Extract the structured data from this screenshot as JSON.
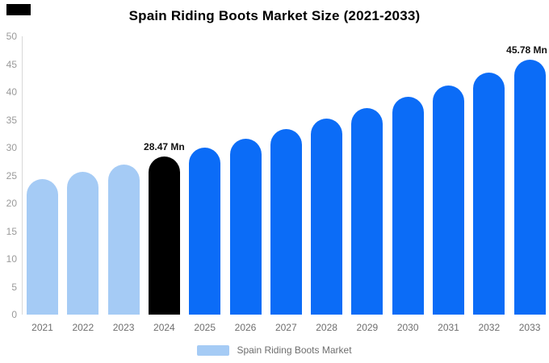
{
  "title": "Spain Riding Boots Market Size (2021-2033)",
  "colors": {
    "past": "#a5cbf5",
    "current": "#000000",
    "forecast": "#0b6cf7",
    "axis_line": "#d8d8d8",
    "y_tick_text": "#9a9a9a",
    "x_tick_text": "#6e6e6e",
    "title_text": "#000000",
    "annotation_text": "#111111",
    "background": "#ffffff"
  },
  "legend": {
    "label": "Spain Riding Boots Market",
    "swatch_color": "#a5cbf5"
  },
  "chart_data": {
    "type": "bar",
    "title": "Spain Riding Boots Market Size (2021-2033)",
    "xlabel": "",
    "ylabel": "",
    "ylim": [
      0,
      50
    ],
    "ytick_step": 5,
    "grid": false,
    "legend_position": "bottom",
    "unit": "Mn",
    "categories": [
      "2021",
      "2022",
      "2023",
      "2024",
      "2025",
      "2026",
      "2027",
      "2028",
      "2029",
      "2030",
      "2031",
      "2032",
      "2033"
    ],
    "values": [
      24.3,
      25.62,
      27.01,
      28.47,
      30.01,
      31.64,
      33.35,
      35.16,
      37.07,
      39.08,
      41.19,
      43.43,
      45.78
    ],
    "bar_roles": [
      "past",
      "past",
      "past",
      "current",
      "forecast",
      "forecast",
      "forecast",
      "forecast",
      "forecast",
      "forecast",
      "forecast",
      "forecast",
      "forecast"
    ],
    "annotations": [
      {
        "category": "2024",
        "text": "28.47 Mn"
      },
      {
        "category": "2033",
        "text": "45.78 Mn"
      }
    ]
  }
}
